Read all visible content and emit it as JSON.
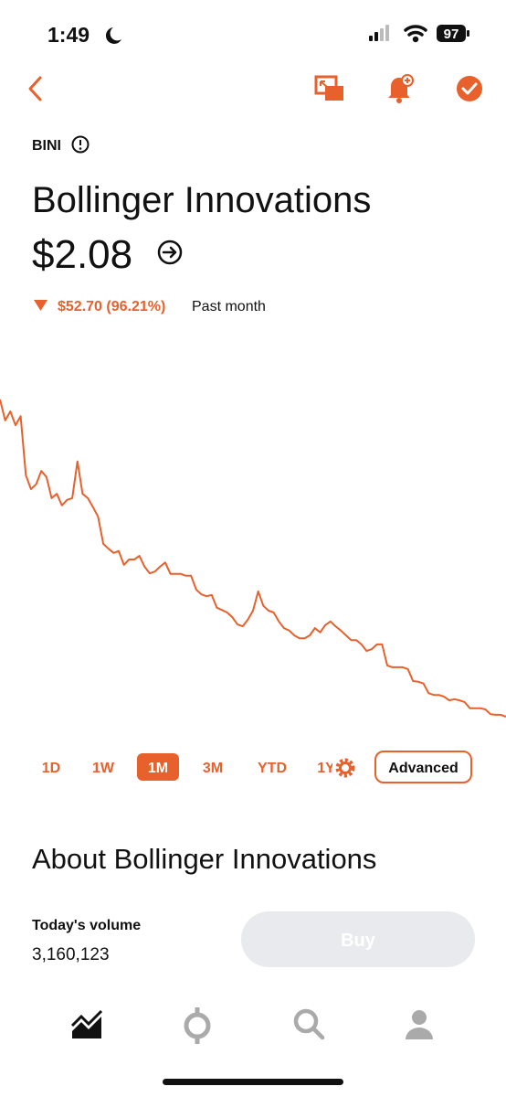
{
  "status_bar": {
    "time": "1:49",
    "battery": "97"
  },
  "header": {
    "ticker": "BINI",
    "name": "Bollinger Innovations",
    "price": "$2.08",
    "change": "$52.70 (96.21%)",
    "period": "Past month"
  },
  "chart_data": {
    "type": "line",
    "color": "#e8602c",
    "values": [
      54.78,
      51.3,
      52.8,
      50.5,
      52.0,
      42.2,
      39.9,
      40.7,
      42.9,
      41.9,
      38.4,
      39.1,
      37.2,
      38.1,
      38.4,
      44.5,
      39.1,
      38.4,
      36.9,
      35.3,
      30.8,
      30.0,
      29.3,
      29.6,
      27.3,
      28.2,
      28.2,
      28.8,
      27.0,
      25.9,
      26.2,
      27.0,
      27.7,
      25.8,
      25.8,
      25.8,
      25.5,
      25.5,
      23.2,
      22.4,
      22.1,
      22.3,
      20.2,
      19.8,
      19.4,
      18.6,
      17.4,
      17.1,
      18.2,
      19.7,
      22.9,
      20.5,
      19.7,
      19.4,
      17.9,
      16.8,
      16.4,
      15.6,
      15.1,
      15.1,
      15.6,
      16.8,
      16.1,
      17.3,
      17.9,
      17.1,
      16.4,
      15.6,
      14.8,
      14.8,
      14.1,
      13.0,
      13.3,
      14.1,
      14.1,
      10.6,
      10.3,
      10.3,
      10.3,
      10.0,
      8.0,
      7.9,
      7.6,
      6.0,
      5.7,
      5.7,
      5.4,
      4.8,
      5.0,
      4.8,
      4.5,
      3.5,
      3.5,
      3.5,
      3.3,
      2.5,
      2.4,
      2.4,
      2.08
    ]
  },
  "ranges": [
    {
      "label": "1D"
    },
    {
      "label": "1W"
    },
    {
      "label": "1M",
      "selected": true
    },
    {
      "label": "3M"
    },
    {
      "label": "YTD"
    },
    {
      "label": "1Y"
    }
  ],
  "advanced": "Advanced",
  "about": {
    "title": "About Bollinger Innovations",
    "volume_label": "Today's volume",
    "volume": "3,160,123"
  },
  "buy": "Buy"
}
